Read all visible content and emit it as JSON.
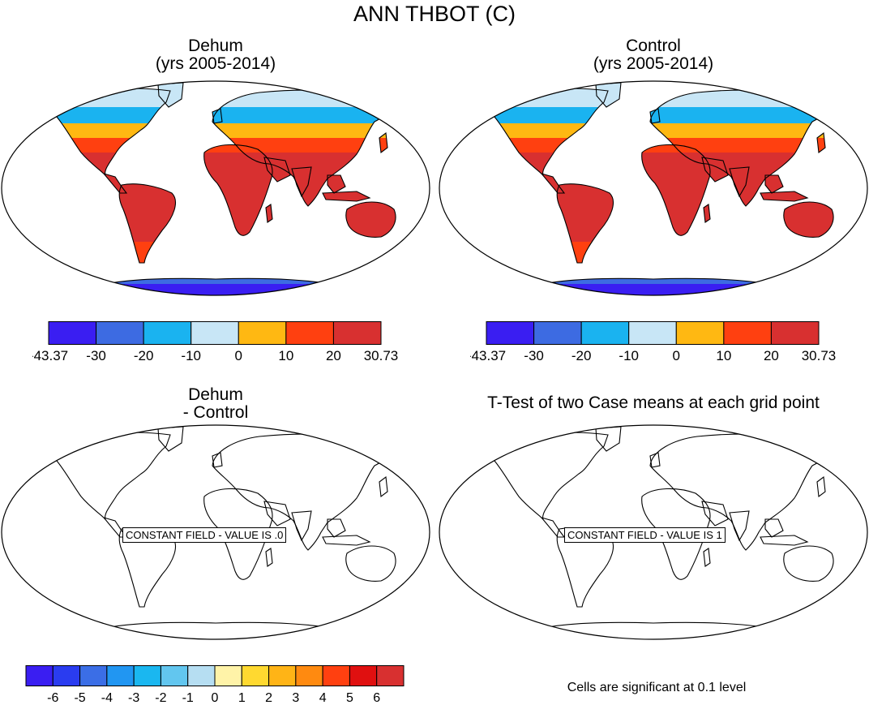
{
  "figure_title": "ANN THBOT (C)",
  "panels": [
    {
      "id": "dehum",
      "title_line1": "Dehum",
      "title_line2": "(yrs 2005-2014)"
    },
    {
      "id": "control",
      "title_line1": "Control",
      "title_line2": "(yrs 2005-2014)"
    },
    {
      "id": "diff",
      "title_line1": "Dehum",
      "title_line2": "- Control",
      "constant_text": "CONSTANT FIELD - VALUE IS .0"
    },
    {
      "id": "ttest",
      "title_line1": "T-Test of two Case means at each grid point",
      "title_line2": "",
      "constant_text": "CONSTANT FIELD - VALUE IS 1"
    }
  ],
  "significance_note": "Cells are significant at 0.1 level",
  "chart_data": [
    {
      "type": "heatmap",
      "title": "Dehum (yrs 2005-2014)",
      "projection": "Robinson",
      "colorbar": {
        "labels": [
          "-43.37",
          "-30",
          "-20",
          "-10",
          "0",
          "10",
          "20",
          "30.73"
        ],
        "colors": [
          "#3a1ef2",
          "#3d6be2",
          "#1ab3f0",
          "#c8e6f6",
          "#ffb812",
          "#ff4010",
          "#d83030"
        ]
      }
    },
    {
      "type": "heatmap",
      "title": "Control (yrs 2005-2014)",
      "projection": "Robinson",
      "colorbar": {
        "labels": [
          "-43.37",
          "-30",
          "-20",
          "-10",
          "0",
          "10",
          "20",
          "30.73"
        ],
        "colors": [
          "#3a1ef2",
          "#3d6be2",
          "#1ab3f0",
          "#c8e6f6",
          "#ffb812",
          "#ff4010",
          "#d83030"
        ]
      }
    },
    {
      "type": "heatmap",
      "title": "Dehum - Control",
      "projection": "Robinson",
      "constant_value": 0,
      "colorbar": {
        "labels": [
          "-6",
          "-5",
          "-4",
          "-3",
          "-2",
          "-1",
          "0",
          "1",
          "2",
          "3",
          "4",
          "5",
          "6"
        ],
        "colors": [
          "#3a1ef2",
          "#2a3cf0",
          "#3b6ee6",
          "#2196f2",
          "#1ab7f0",
          "#62c6ef",
          "#b6def2",
          "#fff3a8",
          "#ffd930",
          "#ffb416",
          "#ff8a10",
          "#ff4010",
          "#e01010",
          "#d83030"
        ]
      }
    },
    {
      "type": "heatmap",
      "title": "T-Test of two Case means at each grid point",
      "projection": "Robinson",
      "constant_value": 1
    }
  ]
}
